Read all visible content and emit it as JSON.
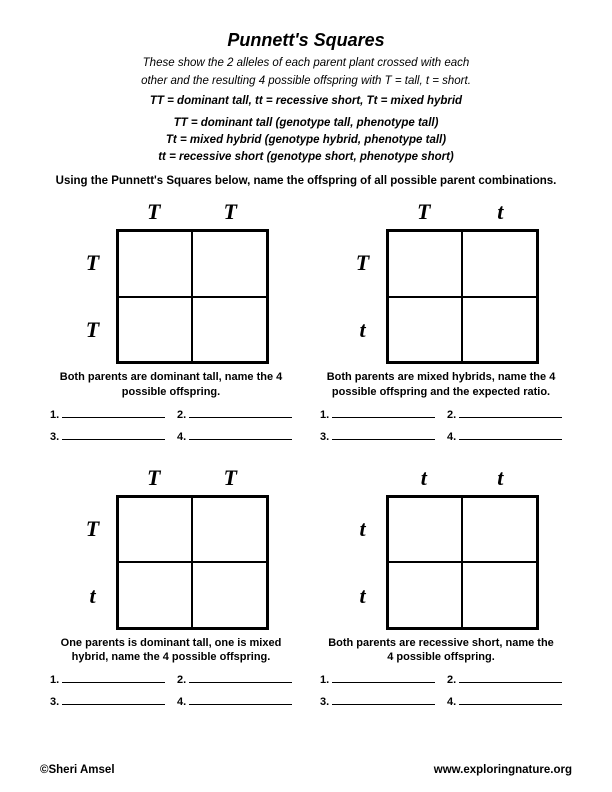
{
  "title": "Punnett's Squares",
  "subtitle1": "These show the 2 alleles of each parent plant crossed with each",
  "subtitle2": "other and the resulting 4 possible offspring with T = tall, t = short.",
  "keyline": "TT = dominant tall, tt = recessive short, Tt = mixed hybrid",
  "geno1": "TT = dominant tall (genotype tall, phenotype tall)",
  "geno2": "Tt = mixed hybrid (genotype hybrid, phenotype tall)",
  "geno3": "tt = recessive short (genotype short, phenotype short)",
  "instruction": "Using the Punnett's Squares below, name the offspring of all possible parent combinations.",
  "squares": [
    {
      "top": [
        "T",
        "T"
      ],
      "left": [
        "T",
        "T"
      ],
      "caption": "Both parents are dominant tall, name the 4 possible offspring."
    },
    {
      "top": [
        "T",
        "t"
      ],
      "left": [
        "T",
        "t"
      ],
      "caption": "Both parents are mixed hybrids, name the 4 possible offspring and the expected ratio."
    },
    {
      "top": [
        "T",
        "T"
      ],
      "left": [
        "T",
        "t"
      ],
      "caption": "One parents is dominant tall, one is mixed hybrid, name the 4 possible offspring."
    },
    {
      "top": [
        "t",
        "t"
      ],
      "left": [
        "t",
        "t"
      ],
      "caption": "Both parents are recessive short, name the 4 possible offspring."
    }
  ],
  "answer_labels": [
    "1.",
    "2.",
    "3.",
    "4."
  ],
  "footer_left": "©Sheri Amsel",
  "footer_right": "www.exploringnature.org",
  "colors": {
    "text": "#000000",
    "bg": "#ffffff",
    "border": "#000000"
  }
}
